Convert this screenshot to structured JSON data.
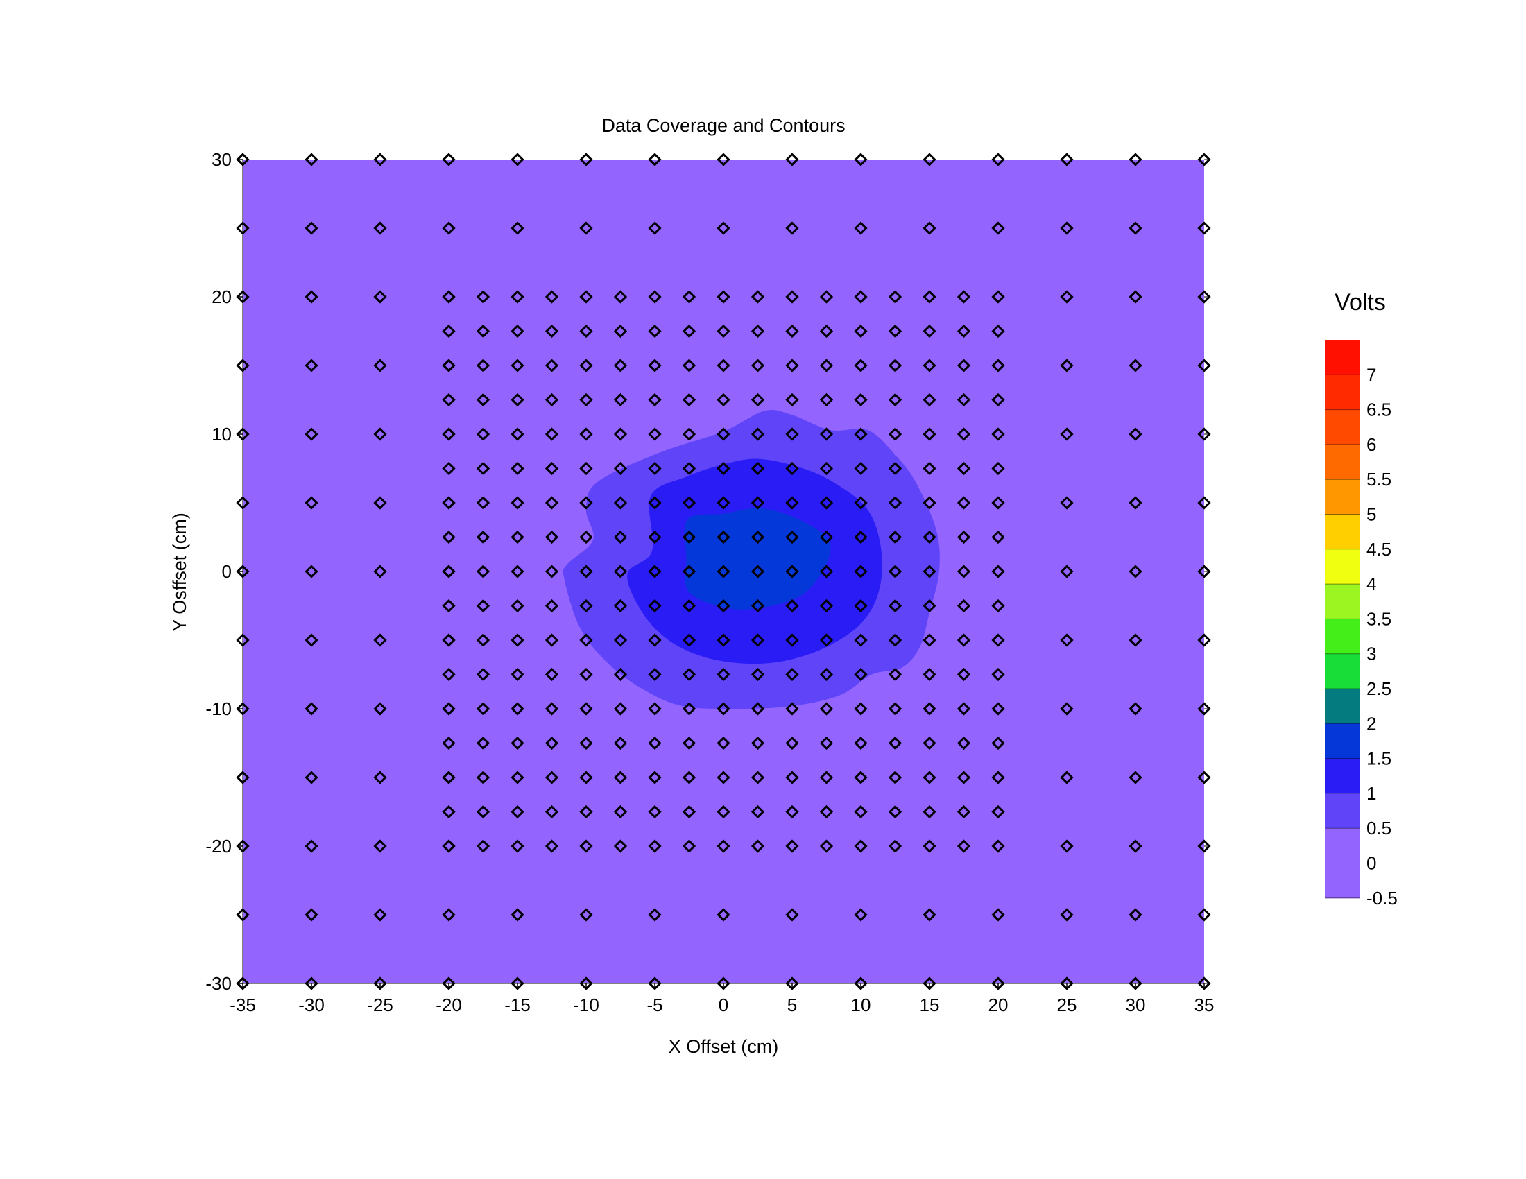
{
  "chart_data": {
    "type": "heatmap",
    "title": "Data Coverage and Contours",
    "xlabel": "X Offset (cm)",
    "ylabel": "Y Osffset (cm)",
    "xlim": [
      -35,
      35
    ],
    "ylim": [
      -30,
      30
    ],
    "x_ticks": [
      -35,
      -30,
      -25,
      -20,
      -15,
      -10,
      -5,
      0,
      5,
      10,
      15,
      20,
      25,
      30,
      35
    ],
    "y_ticks": [
      30,
      20,
      10,
      0,
      -10,
      -20,
      -30
    ],
    "background_value_range": [
      0,
      0.5
    ],
    "contours": [
      {
        "range": [
          0.5,
          1
        ],
        "color": "#6045f8",
        "points": [
          [
            -4.8,
            8.6
          ],
          [
            0,
            10.2
          ],
          [
            3,
            11.7
          ],
          [
            5,
            11.4
          ],
          [
            7.8,
            10.3
          ],
          [
            10.5,
            10.3
          ],
          [
            12.5,
            8.5
          ],
          [
            14,
            6.5
          ],
          [
            15.5,
            3
          ],
          [
            15.7,
            0
          ],
          [
            15,
            -3
          ],
          [
            14.3,
            -5.5
          ],
          [
            13,
            -7
          ],
          [
            10.8,
            -7.5
          ],
          [
            8.5,
            -9
          ],
          [
            5,
            -9.8
          ],
          [
            1,
            -10
          ],
          [
            -3,
            -9.8
          ],
          [
            -6,
            -8.5
          ],
          [
            -8.6,
            -6.5
          ],
          [
            -10.5,
            -4
          ],
          [
            -11.6,
            -0.5
          ],
          [
            -11.4,
            0.5
          ],
          [
            -9.5,
            2.3
          ],
          [
            -10,
            4.5
          ],
          [
            -9.2,
            6.5
          ]
        ]
      },
      {
        "range": [
          1,
          1.5
        ],
        "color": "#2a1cf4",
        "points": [
          [
            -5.3,
            5.5
          ],
          [
            -2.7,
            6.9
          ],
          [
            0,
            7.8
          ],
          [
            2.5,
            8.2
          ],
          [
            5.5,
            7.6
          ],
          [
            8,
            6.5
          ],
          [
            10.5,
            4.5
          ],
          [
            11.5,
            1.5
          ],
          [
            11.3,
            -1.5
          ],
          [
            10,
            -3.8
          ],
          [
            7.5,
            -5.5
          ],
          [
            4.5,
            -6.5
          ],
          [
            1.5,
            -6.7
          ],
          [
            -1.5,
            -6.2
          ],
          [
            -4,
            -5
          ],
          [
            -5.9,
            -3
          ],
          [
            -7,
            -0.2
          ],
          [
            -5.2,
            1.5
          ]
        ]
      },
      {
        "range": [
          1.5,
          2
        ],
        "color": "#0438d8",
        "points": [
          [
            -2.6,
            3.8
          ],
          [
            0,
            4.2
          ],
          [
            2.5,
            4.6
          ],
          [
            5,
            4.0
          ],
          [
            7.5,
            2.5
          ],
          [
            7.6,
            0.8
          ],
          [
            6,
            -1.5
          ],
          [
            3.5,
            -2.5
          ],
          [
            0.5,
            -2.7
          ],
          [
            -2.5,
            -1.5
          ],
          [
            -2.7,
            1
          ]
        ]
      }
    ],
    "samples": {
      "outer_x": [
        -35,
        -30,
        -25,
        -20,
        -15,
        -10,
        -5,
        0,
        5,
        10,
        15,
        20,
        25,
        30,
        35
      ],
      "outer_y": [
        30,
        25,
        -25,
        -30
      ],
      "side_x": [
        -35,
        -30,
        -25,
        -20,
        25,
        30,
        35
      ],
      "side_y": [
        20,
        15,
        10,
        5,
        0,
        -5,
        -10,
        -15,
        -20
      ],
      "inner_x": [
        -20,
        -17.5,
        -15,
        -12.5,
        -10,
        -7.5,
        -5,
        -2.5,
        0,
        2.5,
        5,
        7.5,
        10,
        12.5,
        15,
        17.5,
        20
      ],
      "inner_y": [
        20,
        17.5,
        15,
        12.5,
        10,
        7.5,
        5,
        2.5,
        0,
        -2.5,
        -5,
        -7.5,
        -10,
        -12.5,
        -15,
        -17.5,
        -20
      ],
      "marker": "diamond"
    },
    "legend": {
      "title": "Volts",
      "placement": "right",
      "labels": [
        "7",
        "6.5",
        "6",
        "5.5",
        "5",
        "4.5",
        "4",
        "3.5",
        "3",
        "2.5",
        "2",
        "1.5",
        "1",
        "0.5",
        "0",
        "-0.5"
      ],
      "bands": [
        {
          "from": 7.5,
          "to": 7,
          "color": "#ff1000"
        },
        {
          "from": 7,
          "to": 6.5,
          "color": "#ff2a00"
        },
        {
          "from": 6.5,
          "to": 6,
          "color": "#ff4a00"
        },
        {
          "from": 6,
          "to": 5.5,
          "color": "#ff6a00"
        },
        {
          "from": 5.5,
          "to": 5,
          "color": "#ff9800"
        },
        {
          "from": 5,
          "to": 4.5,
          "color": "#ffcf00"
        },
        {
          "from": 4.5,
          "to": 4,
          "color": "#f0ff10"
        },
        {
          "from": 4,
          "to": 3.5,
          "color": "#9cf520"
        },
        {
          "from": 3.5,
          "to": 3,
          "color": "#44ee18"
        },
        {
          "from": 3,
          "to": 2.5,
          "color": "#18dd38"
        },
        {
          "from": 2.5,
          "to": 2,
          "color": "#047b7e"
        },
        {
          "from": 2,
          "to": 1.5,
          "color": "#0436d8"
        },
        {
          "from": 1.5,
          "to": 1,
          "color": "#2a1cf4"
        },
        {
          "from": 1,
          "to": 0.5,
          "color": "#6045f8"
        },
        {
          "from": 0.5,
          "to": 0,
          "color": "#9365fe"
        },
        {
          "from": 0,
          "to": -0.5,
          "color": "#9365fe"
        }
      ]
    },
    "colors": {
      "background": "#9365fe",
      "marker_stroke": "#000000"
    }
  }
}
